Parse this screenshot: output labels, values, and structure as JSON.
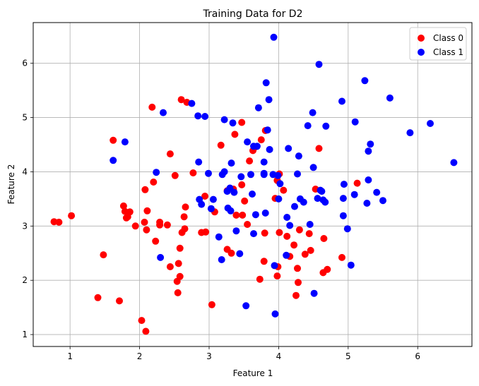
{
  "chart_data": {
    "type": "scatter",
    "title": "Training Data for D2",
    "xlabel": "Feature 1",
    "ylabel": "Feature 2",
    "xlim": [
      0.47,
      6.78
    ],
    "ylim": [
      0.78,
      6.75
    ],
    "xticks": [
      1,
      2,
      3,
      4,
      5,
      6
    ],
    "yticks": [
      1,
      2,
      3,
      4,
      5,
      6
    ],
    "grid": true,
    "legend_position": "top-right",
    "series": [
      {
        "name": "Class 0",
        "color": "#ff0000",
        "points": [
          [
            0.77,
            3.08
          ],
          [
            0.84,
            3.07
          ],
          [
            1.02,
            3.19
          ],
          [
            1.4,
            1.68
          ],
          [
            1.48,
            2.47
          ],
          [
            1.62,
            4.58
          ],
          [
            1.71,
            1.62
          ],
          [
            1.77,
            3.37
          ],
          [
            1.79,
            3.27
          ],
          [
            1.81,
            3.15
          ],
          [
            1.83,
            3.17
          ],
          [
            1.86,
            3.26
          ],
          [
            1.94,
            3.0
          ],
          [
            2.03,
            1.26
          ],
          [
            2.07,
            3.07
          ],
          [
            2.08,
            3.67
          ],
          [
            2.09,
            1.06
          ],
          [
            2.1,
            2.93
          ],
          [
            2.11,
            3.28
          ],
          [
            2.18,
            5.19
          ],
          [
            2.2,
            3.81
          ],
          [
            2.23,
            2.72
          ],
          [
            2.29,
            3.07
          ],
          [
            2.29,
            3.02
          ],
          [
            2.4,
            3.02
          ],
          [
            2.44,
            2.25
          ],
          [
            2.44,
            4.33
          ],
          [
            2.51,
            3.93
          ],
          [
            2.54,
            1.98
          ],
          [
            2.55,
            1.77
          ],
          [
            2.56,
            2.31
          ],
          [
            2.58,
            2.07
          ],
          [
            2.58,
            2.59
          ],
          [
            2.6,
            5.33
          ],
          [
            2.61,
            2.88
          ],
          [
            2.64,
            3.17
          ],
          [
            2.65,
            2.95
          ],
          [
            2.66,
            3.35
          ],
          [
            2.68,
            5.28
          ],
          [
            2.77,
            3.98
          ],
          [
            2.89,
            2.88
          ],
          [
            2.94,
            3.55
          ],
          [
            2.95,
            2.89
          ],
          [
            3.04,
            1.55
          ],
          [
            3.08,
            3.26
          ],
          [
            3.17,
            4.49
          ],
          [
            3.26,
            2.57
          ],
          [
            3.26,
            3.65
          ],
          [
            3.32,
            2.5
          ],
          [
            3.35,
            3.68
          ],
          [
            3.37,
            4.69
          ],
          [
            3.39,
            3.2
          ],
          [
            3.47,
            4.91
          ],
          [
            3.47,
            3.76
          ],
          [
            3.48,
            3.2
          ],
          [
            3.51,
            3.46
          ],
          [
            3.55,
            3.03
          ],
          [
            3.58,
            4.2
          ],
          [
            3.63,
            4.39
          ],
          [
            3.67,
            4.46
          ],
          [
            3.73,
            2.02
          ],
          [
            3.75,
            4.59
          ],
          [
            3.79,
            2.35
          ],
          [
            3.8,
            2.87
          ],
          [
            3.81,
            4.76
          ],
          [
            3.95,
            3.51
          ],
          [
            3.98,
            2.08
          ],
          [
            3.98,
            3.84
          ],
          [
            3.99,
            2.25
          ],
          [
            4.01,
            3.96
          ],
          [
            4.01,
            2.88
          ],
          [
            4.07,
            3.66
          ],
          [
            4.12,
            2.81
          ],
          [
            4.16,
            2.44
          ],
          [
            4.22,
            2.65
          ],
          [
            4.25,
            1.72
          ],
          [
            4.27,
            2.22
          ],
          [
            4.28,
            1.96
          ],
          [
            4.3,
            2.93
          ],
          [
            4.38,
            2.48
          ],
          [
            4.44,
            2.86
          ],
          [
            4.46,
            2.55
          ],
          [
            4.53,
            3.68
          ],
          [
            4.58,
            4.43
          ],
          [
            4.64,
            2.14
          ],
          [
            4.65,
            2.77
          ],
          [
            4.7,
            2.2
          ],
          [
            4.91,
            2.42
          ],
          [
            5.13,
            3.79
          ]
        ]
      },
      {
        "name": "Class 1",
        "color": "#0000ff",
        "points": [
          [
            1.62,
            4.21
          ],
          [
            1.79,
            4.55
          ],
          [
            2.24,
            3.99
          ],
          [
            2.3,
            2.42
          ],
          [
            2.34,
            5.09
          ],
          [
            2.75,
            5.26
          ],
          [
            2.84,
            5.03
          ],
          [
            2.85,
            4.18
          ],
          [
            2.86,
            3.49
          ],
          [
            2.89,
            3.4
          ],
          [
            2.94,
            5.02
          ],
          [
            2.99,
            3.97
          ],
          [
            3.03,
            3.32
          ],
          [
            3.06,
            3.49
          ],
          [
            3.14,
            2.8
          ],
          [
            3.18,
            2.38
          ],
          [
            3.19,
            3.95
          ],
          [
            3.22,
            4.0
          ],
          [
            3.22,
            4.96
          ],
          [
            3.26,
            3.64
          ],
          [
            3.27,
            3.33
          ],
          [
            3.3,
            3.7
          ],
          [
            3.31,
            3.28
          ],
          [
            3.32,
            4.16
          ],
          [
            3.34,
            4.9
          ],
          [
            3.36,
            3.62
          ],
          [
            3.39,
            2.91
          ],
          [
            3.44,
            2.49
          ],
          [
            3.46,
            3.91
          ],
          [
            3.53,
            1.53
          ],
          [
            3.55,
            4.55
          ],
          [
            3.6,
            3.95
          ],
          [
            3.62,
            3.59
          ],
          [
            3.64,
            2.86
          ],
          [
            3.64,
            4.47
          ],
          [
            3.67,
            3.21
          ],
          [
            3.69,
            4.47
          ],
          [
            3.71,
            5.18
          ],
          [
            3.79,
            4.18
          ],
          [
            3.79,
            3.97
          ],
          [
            3.79,
            3.95
          ],
          [
            3.81,
            3.24
          ],
          [
            3.82,
            5.64
          ],
          [
            3.84,
            4.77
          ],
          [
            3.86,
            5.33
          ],
          [
            3.87,
            4.41
          ],
          [
            3.92,
            3.95
          ],
          [
            3.93,
            6.48
          ],
          [
            3.94,
            2.27
          ],
          [
            3.95,
            1.38
          ],
          [
            3.99,
            3.93
          ],
          [
            4.0,
            3.5
          ],
          [
            4.02,
            3.78
          ],
          [
            4.11,
            2.46
          ],
          [
            4.12,
            3.16
          ],
          [
            4.14,
            4.43
          ],
          [
            4.16,
            3.01
          ],
          [
            4.23,
            3.36
          ],
          [
            4.27,
            3.96
          ],
          [
            4.29,
            4.29
          ],
          [
            4.31,
            3.5
          ],
          [
            4.36,
            3.44
          ],
          [
            4.42,
            4.85
          ],
          [
            4.45,
            3.03
          ],
          [
            4.49,
            5.09
          ],
          [
            4.5,
            4.08
          ],
          [
            4.51,
            1.76
          ],
          [
            4.56,
            3.51
          ],
          [
            4.58,
            5.98
          ],
          [
            4.6,
            3.66
          ],
          [
            4.62,
            3.64
          ],
          [
            4.64,
            3.48
          ],
          [
            4.67,
            3.44
          ],
          [
            4.68,
            4.84
          ],
          [
            4.91,
            5.3
          ],
          [
            4.93,
            3.19
          ],
          [
            4.93,
            3.51
          ],
          [
            4.94,
            3.77
          ],
          [
            4.99,
            2.95
          ],
          [
            5.04,
            2.28
          ],
          [
            5.09,
            3.58
          ],
          [
            5.1,
            4.92
          ],
          [
            5.24,
            5.68
          ],
          [
            5.27,
            3.42
          ],
          [
            5.29,
            3.85
          ],
          [
            5.29,
            4.38
          ],
          [
            5.32,
            4.51
          ],
          [
            5.41,
            3.62
          ],
          [
            5.5,
            3.47
          ],
          [
            5.6,
            5.36
          ],
          [
            5.89,
            4.72
          ],
          [
            6.18,
            4.89
          ],
          [
            6.52,
            4.17
          ]
        ]
      }
    ]
  }
}
